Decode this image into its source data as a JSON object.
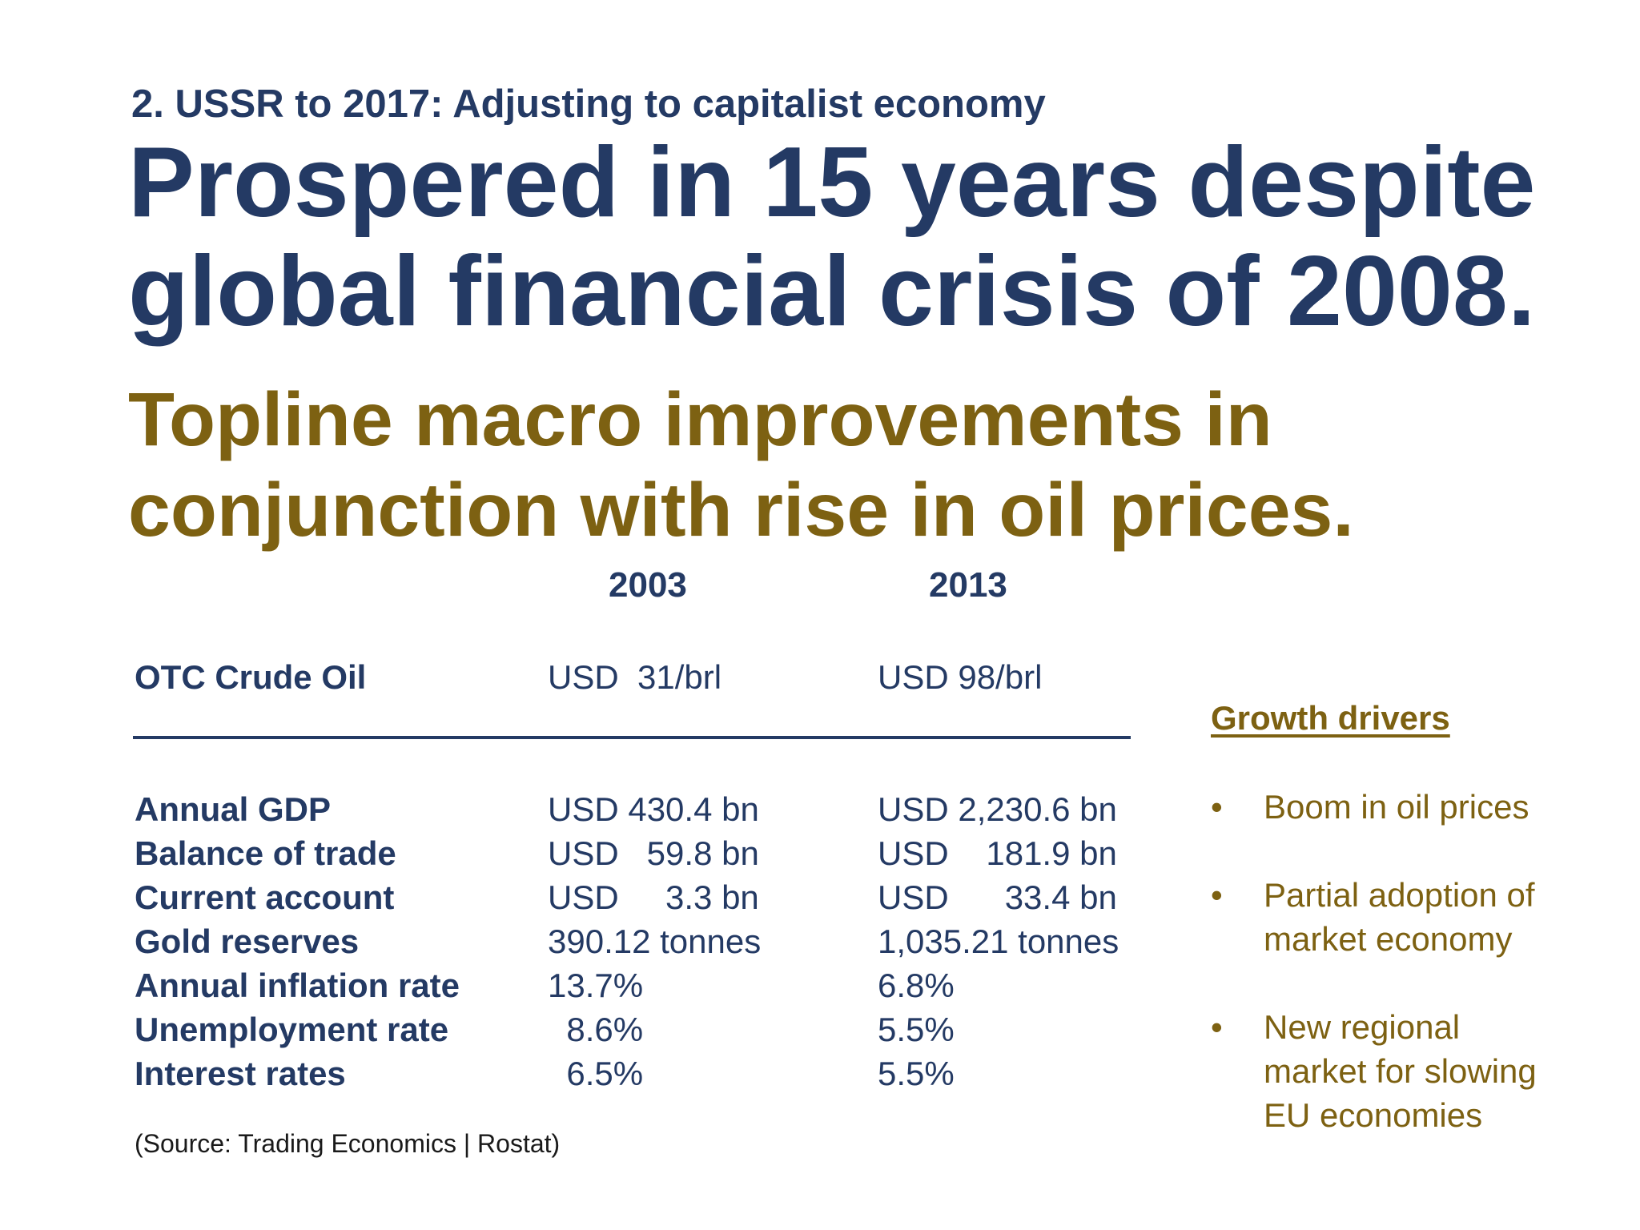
{
  "section_label": "2. USSR to 2017: Adjusting to capitalist economy",
  "headline": {
    "line1": "Prospered in 15 years despite",
    "line2": "global financial crisis of 2008."
  },
  "subheadline": {
    "line1": "Topline macro improvements in",
    "line2": "conjunction with rise in oil prices."
  },
  "table": {
    "years": [
      "2003",
      "2013"
    ],
    "oil_row": {
      "label": "OTC Crude Oil",
      "v2003": "USD  31/brl",
      "v2013": "USD 98/brl"
    },
    "rows": [
      {
        "label": "Annual GDP",
        "v2003": "USD 430.4 bn",
        "v2013": "USD 2,230.6 bn"
      },
      {
        "label": "Balance of trade",
        "v2003": "USD   59.8 bn",
        "v2013": "USD    181.9 bn"
      },
      {
        "label": "Current account",
        "v2003": "USD     3.3 bn",
        "v2013": "USD      33.4 bn"
      },
      {
        "label": "Gold reserves",
        "v2003": "390.12 tonnes",
        "v2013": "1,035.21 tonnes"
      },
      {
        "label": "Annual inflation rate",
        "v2003": "13.7%",
        "v2013": "6.8%"
      },
      {
        "label": "Unemployment rate",
        "v2003": "  8.6%",
        "v2013": "5.5%"
      },
      {
        "label": "Interest rates",
        "v2003": "  6.5%",
        "v2013": "5.5%"
      }
    ]
  },
  "source": "(Source: Trading Economics | Rostat)",
  "growth_drivers": {
    "title": "Growth drivers",
    "bullet_symbol": "•",
    "items": [
      {
        "line1": "Boom in oil prices"
      },
      {
        "line1": "Partial adoption of",
        "line2": "market economy"
      },
      {
        "line1": "New regional",
        "line2": "market for slowing",
        "line3": "EU economies"
      }
    ]
  },
  "colors": {
    "navy": "#243a64",
    "gold": "#7d6112"
  }
}
